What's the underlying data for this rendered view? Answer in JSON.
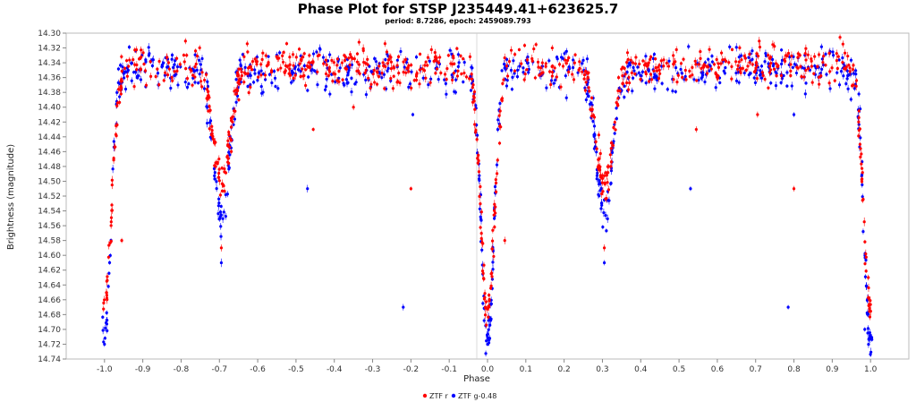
{
  "chart_data": {
    "type": "scatter",
    "title": "Phase Plot for STSP J235449.41+623625.7",
    "subtitle": "period: 8.7286, epoch: 2459089.793",
    "xlabel": "Phase",
    "ylabel": "Brightness (magnitude)",
    "xlim": [
      -1.1,
      1.1
    ],
    "ylim": [
      14.3,
      14.74
    ],
    "y_inverted": true,
    "grid": false,
    "legend_position": "bottom-center",
    "x_ticks": [
      "-1.0",
      "-0.9",
      "-0.8",
      "-0.7",
      "-0.6",
      "-0.5",
      "-0.4",
      "-0.3",
      "-0.2",
      "-0.1",
      "0.0",
      "0.1",
      "0.2",
      "0.3",
      "0.4",
      "0.5",
      "0.6",
      "0.7",
      "0.8",
      "0.9",
      "1.0"
    ],
    "y_ticks": [
      "14.30",
      "14.32",
      "14.34",
      "14.36",
      "14.38",
      "14.40",
      "14.42",
      "14.44",
      "14.46",
      "14.48",
      "14.50",
      "14.52",
      "14.54",
      "14.56",
      "14.58",
      "14.60",
      "14.62",
      "14.64",
      "14.66",
      "14.68",
      "14.70",
      "14.72",
      "14.74"
    ],
    "series": [
      {
        "name": "ZTF r",
        "color": "#ff0000",
        "baseline": 14.345,
        "scatter": 0.013,
        "dense_points": 900,
        "eclipses": [
          {
            "center": -1.0,
            "depth": 0.33,
            "width": 0.018
          },
          {
            "center": -0.695,
            "depth": 0.16,
            "width": 0.022
          },
          {
            "center": 0.0,
            "depth": 0.33,
            "width": 0.018
          },
          {
            "center": 0.305,
            "depth": 0.16,
            "width": 0.022
          },
          {
            "center": 1.0,
            "depth": 0.33,
            "width": 0.018
          }
        ],
        "points": [
          {
            "x": -0.955,
            "y": 14.58
          },
          {
            "x": -0.695,
            "y": 14.59
          },
          {
            "x": -0.455,
            "y": 14.43
          },
          {
            "x": -0.2,
            "y": 14.51
          },
          {
            "x": 0.045,
            "y": 14.58
          },
          {
            "x": 0.305,
            "y": 14.59
          },
          {
            "x": 0.545,
            "y": 14.43
          },
          {
            "x": 0.8,
            "y": 14.51
          },
          {
            "x": -0.35,
            "y": 14.4
          },
          {
            "x": 0.705,
            "y": 14.41
          }
        ]
      },
      {
        "name": "ZTF g-0.48",
        "color": "#0000ff",
        "baseline": 14.35,
        "scatter": 0.014,
        "dense_points": 800,
        "eclipses": [
          {
            "center": -1.0,
            "depth": 0.37,
            "width": 0.016
          },
          {
            "center": -0.695,
            "depth": 0.2,
            "width": 0.02
          },
          {
            "center": 0.0,
            "depth": 0.37,
            "width": 0.016
          },
          {
            "center": 0.305,
            "depth": 0.2,
            "width": 0.02
          },
          {
            "center": 1.0,
            "depth": 0.37,
            "width": 0.016
          }
        ],
        "points": [
          {
            "x": -0.47,
            "y": 14.51
          },
          {
            "x": -0.22,
            "y": 14.67
          },
          {
            "x": -0.695,
            "y": 14.61
          },
          {
            "x": 0.53,
            "y": 14.51
          },
          {
            "x": 0.785,
            "y": 14.67
          },
          {
            "x": 0.305,
            "y": 14.61
          },
          {
            "x": 0.8,
            "y": 14.41
          },
          {
            "x": -0.195,
            "y": 14.41
          },
          {
            "x": -1.0,
            "y": 14.72
          },
          {
            "x": 0.0,
            "y": 14.72
          },
          {
            "x": 0.985,
            "y": 14.7
          }
        ]
      }
    ]
  }
}
